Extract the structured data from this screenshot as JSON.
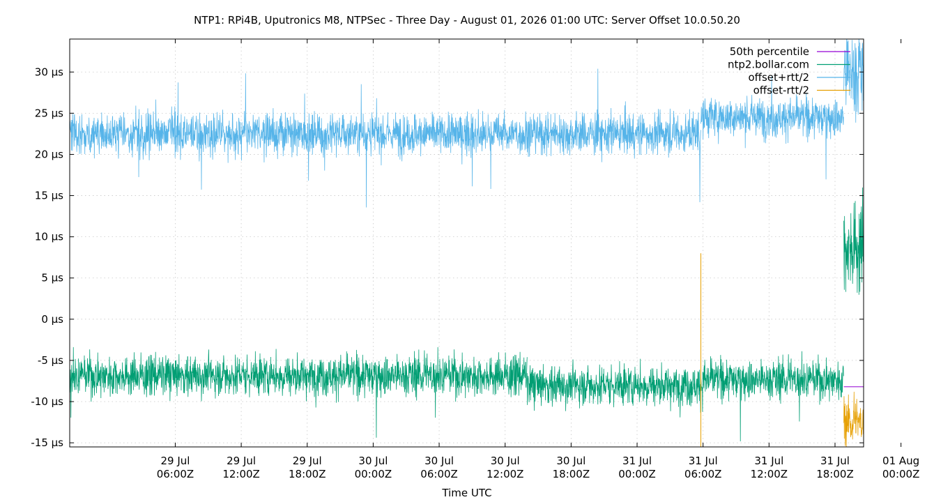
{
  "chart_data": {
    "type": "line",
    "title": "NTP1: RPi4B, Uputronics M8, NTPSec - Three Day - August 01, 2026 01:00 UTC: Server Offset 10.0.50.20",
    "xlabel": "Time UTC",
    "ylabel": "",
    "x_unit": "hours from 29 Jul 00:00Z",
    "xlim": [
      -3.6,
      68.6
    ],
    "ylim": [
      -15.5,
      34
    ],
    "y_ticks": [
      {
        "value": 30,
        "label": "30 µs"
      },
      {
        "value": 25,
        "label": "25 µs"
      },
      {
        "value": 20,
        "label": "20 µs"
      },
      {
        "value": 15,
        "label": "15 µs"
      },
      {
        "value": 10,
        "label": "10 µs"
      },
      {
        "value": 5,
        "label": "5 µs"
      },
      {
        "value": 0,
        "label": "0 µs"
      },
      {
        "value": -5,
        "label": "-5 µs"
      },
      {
        "value": -10,
        "label": "-10 µs"
      },
      {
        "value": -15,
        "label": "-15 µs"
      }
    ],
    "x_ticks": [
      {
        "value": 6,
        "line1": "29 Jul",
        "line2": "06:00Z"
      },
      {
        "value": 12,
        "line1": "29 Jul",
        "line2": "12:00Z"
      },
      {
        "value": 18,
        "line1": "29 Jul",
        "line2": "18:00Z"
      },
      {
        "value": 24,
        "line1": "30 Jul",
        "line2": "00:00Z"
      },
      {
        "value": 30,
        "line1": "30 Jul",
        "line2": "06:00Z"
      },
      {
        "value": 36,
        "line1": "30 Jul",
        "line2": "12:00Z"
      },
      {
        "value": 42,
        "line1": "30 Jul",
        "line2": "18:00Z"
      },
      {
        "value": 48,
        "line1": "31 Jul",
        "line2": "00:00Z"
      },
      {
        "value": 54,
        "line1": "31 Jul",
        "line2": "06:00Z"
      },
      {
        "value": 60,
        "line1": "31 Jul",
        "line2": "12:00Z"
      },
      {
        "value": 66,
        "line1": "31 Jul",
        "line2": "18:00Z"
      },
      {
        "value": 72,
        "line1": "01 Aug",
        "line2": "00:00Z"
      }
    ],
    "grid": true,
    "legend_position": "top-right",
    "series": [
      {
        "name": "50th percentile",
        "color": "#9400d3",
        "style": "line",
        "points": [
          [
            66.8,
            -8.2
          ],
          [
            68.6,
            -8.2
          ]
        ]
      },
      {
        "name": "ntp2.bollar.com",
        "color": "#009e73",
        "style": "noise-band",
        "segments": [
          {
            "x": [
              -3.6,
              38
            ],
            "center": -6.8,
            "spread": 2.6,
            "spikes": 5
          },
          {
            "x": [
              38,
              54
            ],
            "center": -8.0,
            "spread": 2.6,
            "spikes": 5
          },
          {
            "x": [
              54,
              66.8
            ],
            "center": -7.3,
            "spread": 2.5,
            "spikes": 5
          },
          {
            "x": [
              66.8,
              68.6
            ],
            "center": 9.0,
            "spread": 6.5,
            "spikes": 12
          }
        ]
      },
      {
        "name": "offset+rtt/2",
        "color": "#56b4e9",
        "style": "noise-band",
        "segments": [
          {
            "x": [
              -3.6,
              53.8
            ],
            "center": 22.5,
            "spread": 2.6,
            "spikes": 5
          },
          {
            "x": [
              53.8,
              66.8
            ],
            "center": 24.5,
            "spread": 2.5,
            "spikes": 5
          },
          {
            "x": [
              66.8,
              68.6
            ],
            "center": 30.0,
            "spread": 6.0,
            "spikes": 8
          }
        ]
      },
      {
        "name": "offset-rtt/2",
        "color": "#e69f00",
        "style": "noise-band",
        "segments": [
          {
            "x": [
              66.8,
              68.6
            ],
            "center": -12.5,
            "spread": 2.8,
            "spikes": 6
          }
        ]
      }
    ],
    "annotations": [
      {
        "type": "vertical-spike",
        "series": "offset-rtt/2",
        "x": 53.8,
        "y_from": -15.5,
        "y_to": 8
      }
    ]
  }
}
